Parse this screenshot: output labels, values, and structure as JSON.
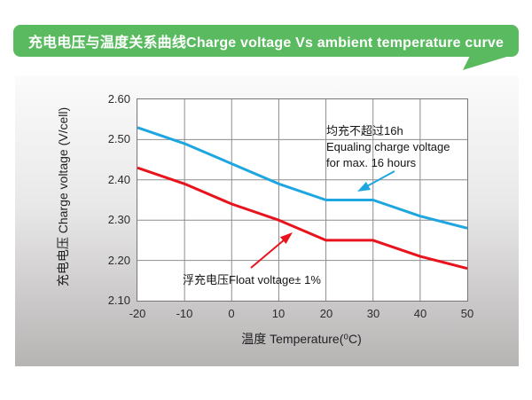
{
  "title": {
    "text": "充电电压与温度关系曲线Charge voltage Vs ambient temperature curve"
  },
  "colors": {
    "banner_green": "#5aba60",
    "equalize_blue": "#1ea6e0",
    "float_red": "#e8131d",
    "grid_gray": "#8d8d8d"
  },
  "chart_data": {
    "type": "line",
    "title": "充电电压与温度关系曲线 Charge voltage Vs ambient temperature curve",
    "x": [
      -20,
      -10,
      0,
      10,
      20,
      30,
      40,
      50
    ],
    "x_ticks": [
      "-20",
      "-10",
      "0",
      "10",
      "20",
      "30",
      "40",
      "50"
    ],
    "y_ticks": [
      "2.60",
      "2.50",
      "2.40",
      "2.30",
      "2.20",
      "2.10"
    ],
    "xlabel": "温度 Temperature(⁰C)",
    "ylabel": "充电电压 Charge voltage (V/cell)",
    "xlim": [
      -20,
      50
    ],
    "ylim": [
      2.1,
      2.6
    ],
    "grid": true,
    "legend_position": "annotations-on-plot",
    "series": [
      {
        "name": "equalize-charge-voltage",
        "label": "均充不超过16h Equaling charge voltage for max. 16 hours",
        "color": "#1ea6e0",
        "values": [
          2.53,
          2.49,
          2.44,
          2.39,
          2.35,
          2.35,
          2.31,
          2.28
        ]
      },
      {
        "name": "float-voltage",
        "label": "浮充电压Float voltage± 1%",
        "color": "#e8131d",
        "values": [
          2.43,
          2.39,
          2.34,
          2.3,
          2.25,
          2.25,
          2.21,
          2.18
        ]
      }
    ]
  },
  "annotations": {
    "equalize": {
      "line1": "均充不超过16h",
      "line2": "Equaling charge voltage",
      "line3": "for max. 16 hours"
    },
    "float_label": "浮充电压Float voltage± 1%"
  }
}
